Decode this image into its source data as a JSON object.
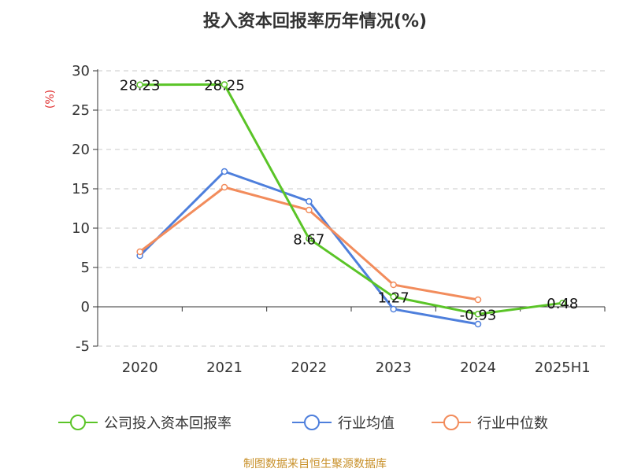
{
  "chart_data": {
    "type": "line",
    "title": "投入资本回报率历年情况(%)",
    "ylabel": "(%)",
    "categories": [
      "2020",
      "2021",
      "2022",
      "2023",
      "2024",
      "2025H1"
    ],
    "yticks": [
      "30",
      "25",
      "20",
      "15",
      "10",
      "5",
      "0",
      "-5"
    ],
    "ylim": [
      -5,
      30
    ],
    "grid": true,
    "legend_position": "bottom",
    "series": [
      {
        "name": "公司投入资本回报率",
        "color": "#5ac427",
        "values": [
          28.23,
          28.25,
          8.67,
          1.27,
          -0.93,
          0.48
        ],
        "labels": [
          "28.23",
          "28.25",
          "8.67",
          "1.27",
          "-0.93",
          "0.48"
        ]
      },
      {
        "name": "行业均值",
        "color": "#4e7fdc",
        "values": [
          6.5,
          17.2,
          13.4,
          -0.3,
          -2.2,
          null
        ]
      },
      {
        "name": "行业中位数",
        "color": "#f28c5c",
        "values": [
          7.0,
          15.2,
          12.3,
          2.8,
          0.9,
          null
        ]
      }
    ]
  },
  "source_text": "制图数据来自恒生聚源数据库"
}
